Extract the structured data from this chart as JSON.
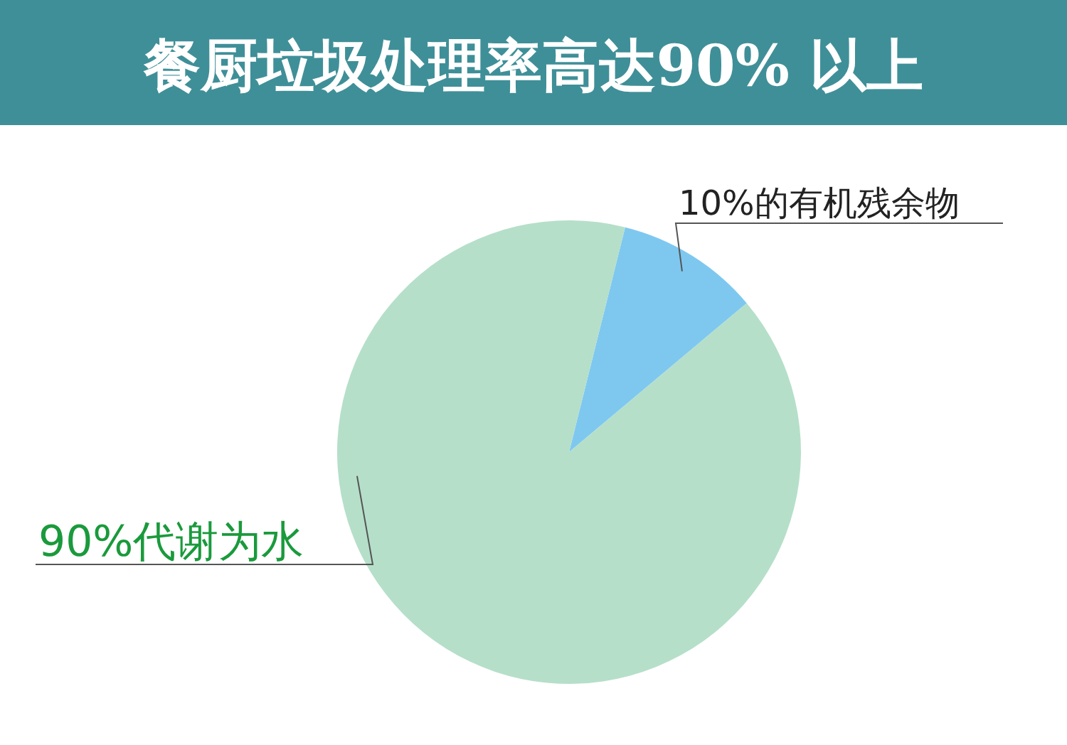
{
  "chart_data": {
    "type": "pie",
    "title": "餐厨垃圾处理率高达90% 以上",
    "categories": [
      "10%的有机残余物",
      "90%代谢为水"
    ],
    "values": [
      10,
      90
    ],
    "colors": [
      "#7ec8f0",
      "#b5dfc9"
    ]
  }
}
